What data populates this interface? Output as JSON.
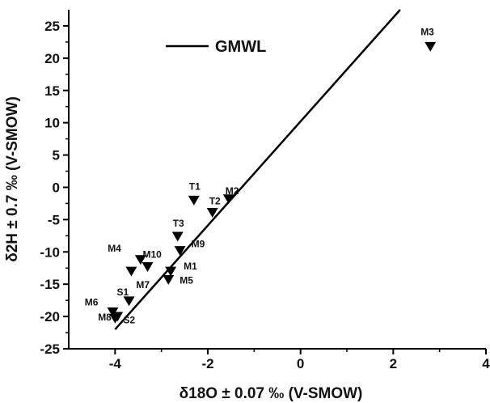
{
  "chart_data": {
    "type": "scatter",
    "title": "",
    "xlabel": "δ18O ± 0.07 ‰ (V-SMOW)",
    "ylabel": "δ2H ± 0.7 ‰ (V-SMOW)",
    "xlim": [
      -5,
      4
    ],
    "ylim": [
      -25,
      27.5
    ],
    "x_ticks": [
      -4,
      -2,
      0,
      2,
      4
    ],
    "y_ticks": [
      -25,
      -20,
      -15,
      -10,
      -5,
      0,
      5,
      10,
      15,
      20,
      25
    ],
    "grid": false,
    "legend": {
      "position": "top-left",
      "entries": [
        "GMWL"
      ]
    },
    "series": [
      {
        "name": "GMWL",
        "type": "line",
        "color": "#000000",
        "x": [
          -4.0,
          2.15
        ],
        "y": [
          -22.0,
          27.5
        ]
      },
      {
        "type": "scatter",
        "marker": "triangle-down",
        "color": "#000000",
        "points": [
          {
            "label": "M1",
            "x": -2.8,
            "y": -13.0
          },
          {
            "label": "M2",
            "x": -1.55,
            "y": -1.8
          },
          {
            "label": "M3",
            "x": 2.8,
            "y": 21.8
          },
          {
            "label": "M4",
            "x": -3.45,
            "y": -11.2
          },
          {
            "label": "M5",
            "x": -2.85,
            "y": -14.3
          },
          {
            "label": "M6",
            "x": -4.05,
            "y": -19.3
          },
          {
            "label": "M7",
            "x": -3.65,
            "y": -13.0
          },
          {
            "label": "M8",
            "x": -3.95,
            "y": -20.0
          },
          {
            "label": "M9",
            "x": -2.6,
            "y": -9.8
          },
          {
            "label": "M10",
            "x": -3.3,
            "y": -12.3
          },
          {
            "label": "S1",
            "x": -3.7,
            "y": -17.6
          },
          {
            "label": "S2",
            "x": -4.0,
            "y": -20.3
          },
          {
            "label": "T1",
            "x": -2.3,
            "y": -2.0
          },
          {
            "label": "T2",
            "x": -1.9,
            "y": -3.9
          },
          {
            "label": "T3",
            "x": -2.65,
            "y": -7.6
          }
        ]
      }
    ]
  }
}
